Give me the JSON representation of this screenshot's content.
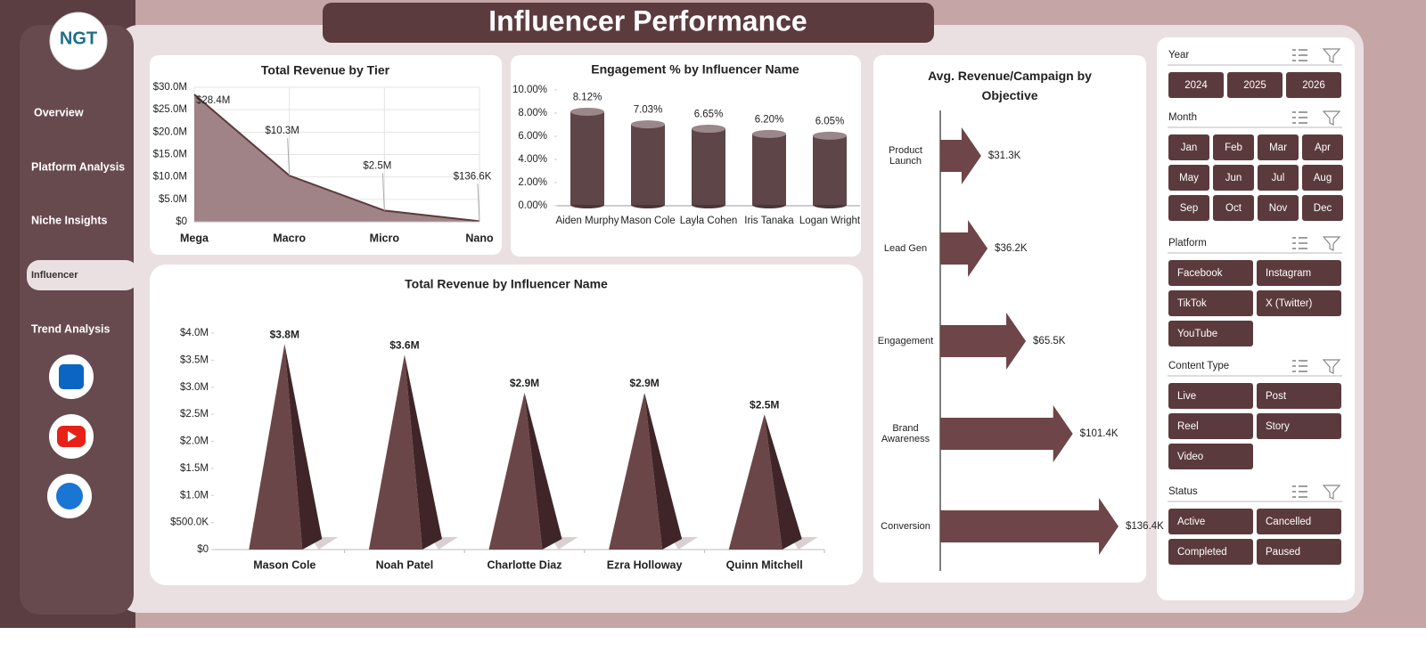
{
  "header": {
    "title": "Influencer Performance",
    "logo": "NGT"
  },
  "sidebar": {
    "items": [
      "Overview",
      "Platform Analysis",
      "Niche Insights",
      "Influencer",
      "Trend Analysis"
    ],
    "active": 3
  },
  "chart_data": [
    {
      "type": "area",
      "title": "Total Revenue  by Tier",
      "categories": [
        "Mega",
        "Macro",
        "Micro",
        "Nano"
      ],
      "values": [
        28400000,
        10300000,
        2500000,
        136600
      ],
      "value_labels": [
        "$28.4M",
        "$10.3M",
        "$2.5M",
        "$136.6K"
      ],
      "color": "#5b3a3d",
      "fill": "#a08386",
      "ylim": [
        0,
        30000000
      ],
      "yticks": [
        {
          "value": 0,
          "label": "$0"
        },
        {
          "value": 5000000,
          "label": "$5.0M"
        },
        {
          "value": 10000000,
          "label": "$10.0M"
        },
        {
          "value": 15000000,
          "label": "$15.0M"
        },
        {
          "value": 20000000,
          "label": "$20.0M"
        },
        {
          "value": 25000000,
          "label": "$25.0M"
        },
        {
          "value": 30000000,
          "label": "$30.0M"
        }
      ],
      "grid": true
    },
    {
      "type": "cylinder",
      "title": "Engagement % by Influencer Name",
      "categories": [
        "Aiden Murphy",
        "Mason Cole",
        "Layla Cohen",
        "Iris Tanaka",
        "Logan Wright"
      ],
      "values": [
        8.12,
        7.03,
        6.65,
        6.2,
        6.05
      ],
      "value_labels": [
        "8.12%",
        "7.03%",
        "6.65%",
        "6.20%",
        "6.05%"
      ],
      "color": "#5e4648",
      "ylim": [
        0,
        10
      ],
      "yticks": [
        {
          "value": 0,
          "label": "0.00%"
        },
        {
          "value": 2,
          "label": "2.00%"
        },
        {
          "value": 4,
          "label": "4.00%"
        },
        {
          "value": 6,
          "label": "6.00%"
        },
        {
          "value": 8,
          "label": "8.00%"
        },
        {
          "value": 10,
          "label": "10.00%"
        }
      ]
    },
    {
      "type": "pyramid",
      "title": "Total Revenue by Influencer  Name",
      "categories": [
        "Mason Cole",
        "Noah Patel",
        "Charlotte Diaz",
        "Ezra Holloway",
        "Quinn Mitchell"
      ],
      "values": [
        3800000,
        3600000,
        2900000,
        2900000,
        2500000
      ],
      "value_labels": [
        "$3.8M",
        "$3.6M",
        "$2.9M",
        "$2.9M",
        "$2.5M"
      ],
      "color": "#6b4649",
      "ylim": [
        0,
        4000000
      ],
      "yticks": [
        {
          "value": 0,
          "label": "$0"
        },
        {
          "value": 500000,
          "label": "$500.0K"
        },
        {
          "value": 1000000,
          "label": "$1.0M"
        },
        {
          "value": 1500000,
          "label": "$1.5M"
        },
        {
          "value": 2000000,
          "label": "$2.0M"
        },
        {
          "value": 2500000,
          "label": "$2.5M"
        },
        {
          "value": 3000000,
          "label": "$3.0M"
        },
        {
          "value": 3500000,
          "label": "$3.5M"
        },
        {
          "value": 4000000,
          "label": "$4.0M"
        }
      ]
    },
    {
      "type": "arrow",
      "title": "Avg. Revenue/Campaign  by Objective",
      "categories": [
        "Product Launch",
        "Lead Gen",
        "Engagement",
        "Brand Awareness",
        "Conversion"
      ],
      "values": [
        31300,
        36200,
        65500,
        101400,
        136400
      ],
      "value_labels": [
        "$31.3K",
        "$36.2K",
        "$65.5K",
        "$101.4K",
        "$136.4K"
      ],
      "color": "#6e4548"
    }
  ],
  "slicers": [
    {
      "title": "Year",
      "items": [
        "2024",
        "2025",
        "2026"
      ]
    },
    {
      "title": "Month",
      "items": [
        "Jan",
        "Feb",
        "Mar",
        "Apr",
        "May",
        "Jun",
        "Jul",
        "Aug",
        "Sep",
        "Oct",
        "Nov",
        "Dec"
      ]
    },
    {
      "title": "Platform",
      "items": [
        "Facebook",
        "Instagram",
        "TikTok",
        "X (Twitter)",
        "YouTube"
      ]
    },
    {
      "title": "Content Type",
      "items": [
        "Live",
        "Post",
        "Reel",
        "Story",
        "Video"
      ]
    },
    {
      "title": "Status",
      "items": [
        "Active",
        "Cancelled",
        "Completed",
        "Paused"
      ]
    }
  ]
}
